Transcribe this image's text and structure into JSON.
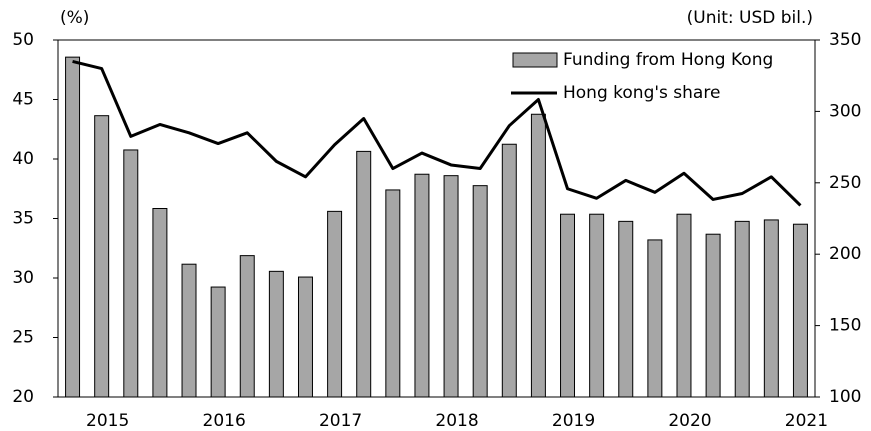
{
  "chart_data": {
    "type": "bar-line",
    "y_label": "(%)",
    "y2_label": "(Unit: USD bil.)",
    "categories": [
      null,
      "2015",
      null,
      null,
      null,
      "2016",
      null,
      null,
      null,
      "2017",
      null,
      null,
      null,
      "2018",
      null,
      null,
      null,
      "2019",
      null,
      null,
      null,
      "2020",
      null,
      null,
      null,
      "2021"
    ],
    "series": [
      {
        "name": "Funding from Hong Kong",
        "type": "bar",
        "axis": "y2",
        "color": "#a6a6a6",
        "values": [
          338,
          297,
          273,
          232,
          193,
          177,
          199,
          188,
          184,
          230,
          272,
          245,
          256,
          255,
          248,
          277,
          298,
          228,
          228,
          223,
          210,
          228,
          214,
          223,
          224,
          221
        ]
      },
      {
        "name": "Hong kong's share",
        "type": "line",
        "axis": "y",
        "color": "#000000",
        "values": [
          48.2,
          47.6,
          41.9,
          42.9,
          42.2,
          41.3,
          42.2,
          39.8,
          38.5,
          41.2,
          43.4,
          39.2,
          40.5,
          39.5,
          39.2,
          42.8,
          45.0,
          37.5,
          36.7,
          38.2,
          37.2,
          38.8,
          36.6,
          37.1,
          38.5,
          36.1
        ]
      }
    ],
    "ylim": [
      20,
      50
    ],
    "yticks": [
      20,
      25,
      30,
      35,
      40,
      45,
      50
    ],
    "y2lim": [
      100,
      350
    ],
    "y2ticks": [
      100,
      150,
      200,
      250,
      300,
      350
    ],
    "legend": "top-right"
  }
}
